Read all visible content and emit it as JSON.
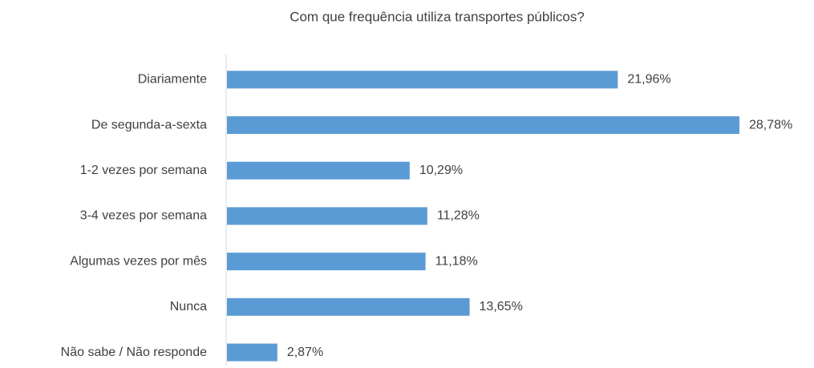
{
  "chart_data": {
    "type": "barh",
    "title": "Com que frequência utiliza transportes públicos?",
    "categories": [
      "Diariamente",
      "De segunda-a-sexta",
      "1-2 vezes por semana",
      "3-4 vezes por semana",
      "Algumas vezes por mês",
      "Nunca",
      "Não sabe / Não responde"
    ],
    "values": [
      21.96,
      28.78,
      10.29,
      11.28,
      11.18,
      13.65,
      2.87
    ],
    "value_labels": [
      "21,96%",
      "28,78%",
      "10,29%",
      "11,28%",
      "11,18%",
      "13,65%",
      "2,87%"
    ],
    "color": "#5b9bd5"
  }
}
